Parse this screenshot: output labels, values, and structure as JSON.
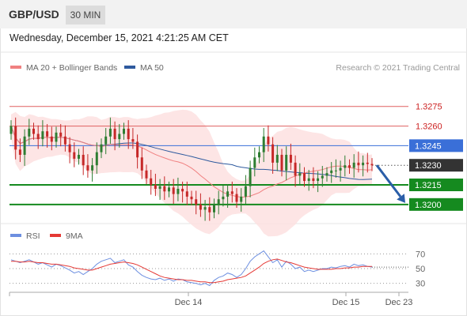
{
  "header": {
    "symbol": "GBP/USD",
    "interval": "30 MIN"
  },
  "timestamp": "Wednesday, December 15, 2021 4:21:25 AM CET",
  "legend": {
    "ma20": "MA 20 + Bollinger Bands",
    "ma50": "MA 50",
    "rsi": "RSI",
    "ma9": "9MA"
  },
  "copyright": "Research © 2021 Trading Central",
  "colors": {
    "ma20": "#f08080",
    "ma50": "#2e5a9e",
    "band": "#fde0e0",
    "up": "#2e7d32",
    "down": "#c62828",
    "resistance": "#e06060",
    "current": "#3a6fd8",
    "support": "#158a1f",
    "price_box": "#333333",
    "arrow": "#2a5ea8"
  },
  "chart_data": [
    {
      "type": "candlestick",
      "x_labels": [
        "Dec 14",
        "Dec 15",
        "Dec 23"
      ],
      "ylim": [
        1.3186,
        1.3296
      ],
      "levels": [
        {
          "label": "1.3275",
          "value": 1.3275,
          "kind": "resistance"
        },
        {
          "label": "1.3260",
          "value": 1.326,
          "kind": "resistance"
        },
        {
          "label": "1.3245",
          "value": 1.3245,
          "kind": "current"
        },
        {
          "label": "1.3230",
          "value": 1.323,
          "kind": "price"
        },
        {
          "label": "1.3215",
          "value": 1.3215,
          "kind": "support"
        },
        {
          "label": "1.3200",
          "value": 1.32,
          "kind": "support"
        }
      ],
      "close": [
        1.326,
        1.3242,
        1.3238,
        1.3252,
        1.3258,
        1.3254,
        1.325,
        1.3256,
        1.3252,
        1.3248,
        1.3255,
        1.3252,
        1.3246,
        1.324,
        1.3235,
        1.3238,
        1.323,
        1.3226,
        1.323,
        1.324,
        1.3246,
        1.3252,
        1.3258,
        1.325,
        1.3254,
        1.3258,
        1.325,
        1.3248,
        1.3236,
        1.3226,
        1.322,
        1.3215,
        1.3212,
        1.3214,
        1.321,
        1.3213,
        1.3208,
        1.3212,
        1.321,
        1.3206,
        1.3204,
        1.32,
        1.3196,
        1.3198,
        1.3194,
        1.32,
        1.3204,
        1.3206,
        1.321,
        1.3208,
        1.3202,
        1.3206,
        1.3214,
        1.3228,
        1.3236,
        1.324,
        1.3252,
        1.3246,
        1.3232,
        1.3238,
        1.3226,
        1.3238,
        1.3232,
        1.3222,
        1.3224,
        1.3218,
        1.322,
        1.3218,
        1.322,
        1.3222,
        1.3224,
        1.3226,
        1.3226,
        1.3228,
        1.323,
        1.3228,
        1.3232,
        1.323,
        1.3232,
        1.3231,
        1.323
      ],
      "forecast_arrow": {
        "from": 1.323,
        "to": 1.32
      }
    },
    {
      "type": "line",
      "title": "RSI",
      "ylim": [
        20,
        80
      ],
      "y_ticks": [
        "70",
        "50",
        "30"
      ],
      "rsi": [
        62,
        60,
        58,
        60,
        62,
        59,
        56,
        58,
        55,
        52,
        56,
        54,
        51,
        48,
        44,
        46,
        42,
        46,
        50,
        56,
        60,
        62,
        64,
        58,
        60,
        62,
        55,
        52,
        46,
        41,
        38,
        36,
        35,
        37,
        34,
        36,
        33,
        36,
        35,
        32,
        31,
        30,
        28,
        30,
        27,
        34,
        38,
        40,
        44,
        42,
        38,
        42,
        50,
        60,
        66,
        70,
        74,
        66,
        58,
        62,
        52,
        60,
        56,
        50,
        52,
        46,
        48,
        46,
        48,
        50,
        50,
        52,
        51,
        53,
        54,
        52,
        56,
        54,
        55,
        53,
        52
      ],
      "ma9": [
        60,
        60,
        59,
        59,
        60,
        59,
        58,
        58,
        57,
        56,
        56,
        55,
        54,
        53,
        51,
        50,
        49,
        48,
        48,
        50,
        52,
        54,
        56,
        57,
        58,
        59,
        58,
        57,
        55,
        52,
        49,
        46,
        43,
        40,
        38,
        37,
        36,
        35,
        35,
        34,
        34,
        33,
        32,
        32,
        31,
        31,
        32,
        33,
        35,
        36,
        37,
        38,
        40,
        44,
        48,
        52,
        57,
        60,
        62,
        63,
        61,
        59,
        58,
        56,
        54,
        52,
        51,
        50,
        49,
        49,
        49,
        49,
        50,
        50,
        51,
        51,
        52,
        52,
        53,
        53,
        53
      ]
    }
  ]
}
